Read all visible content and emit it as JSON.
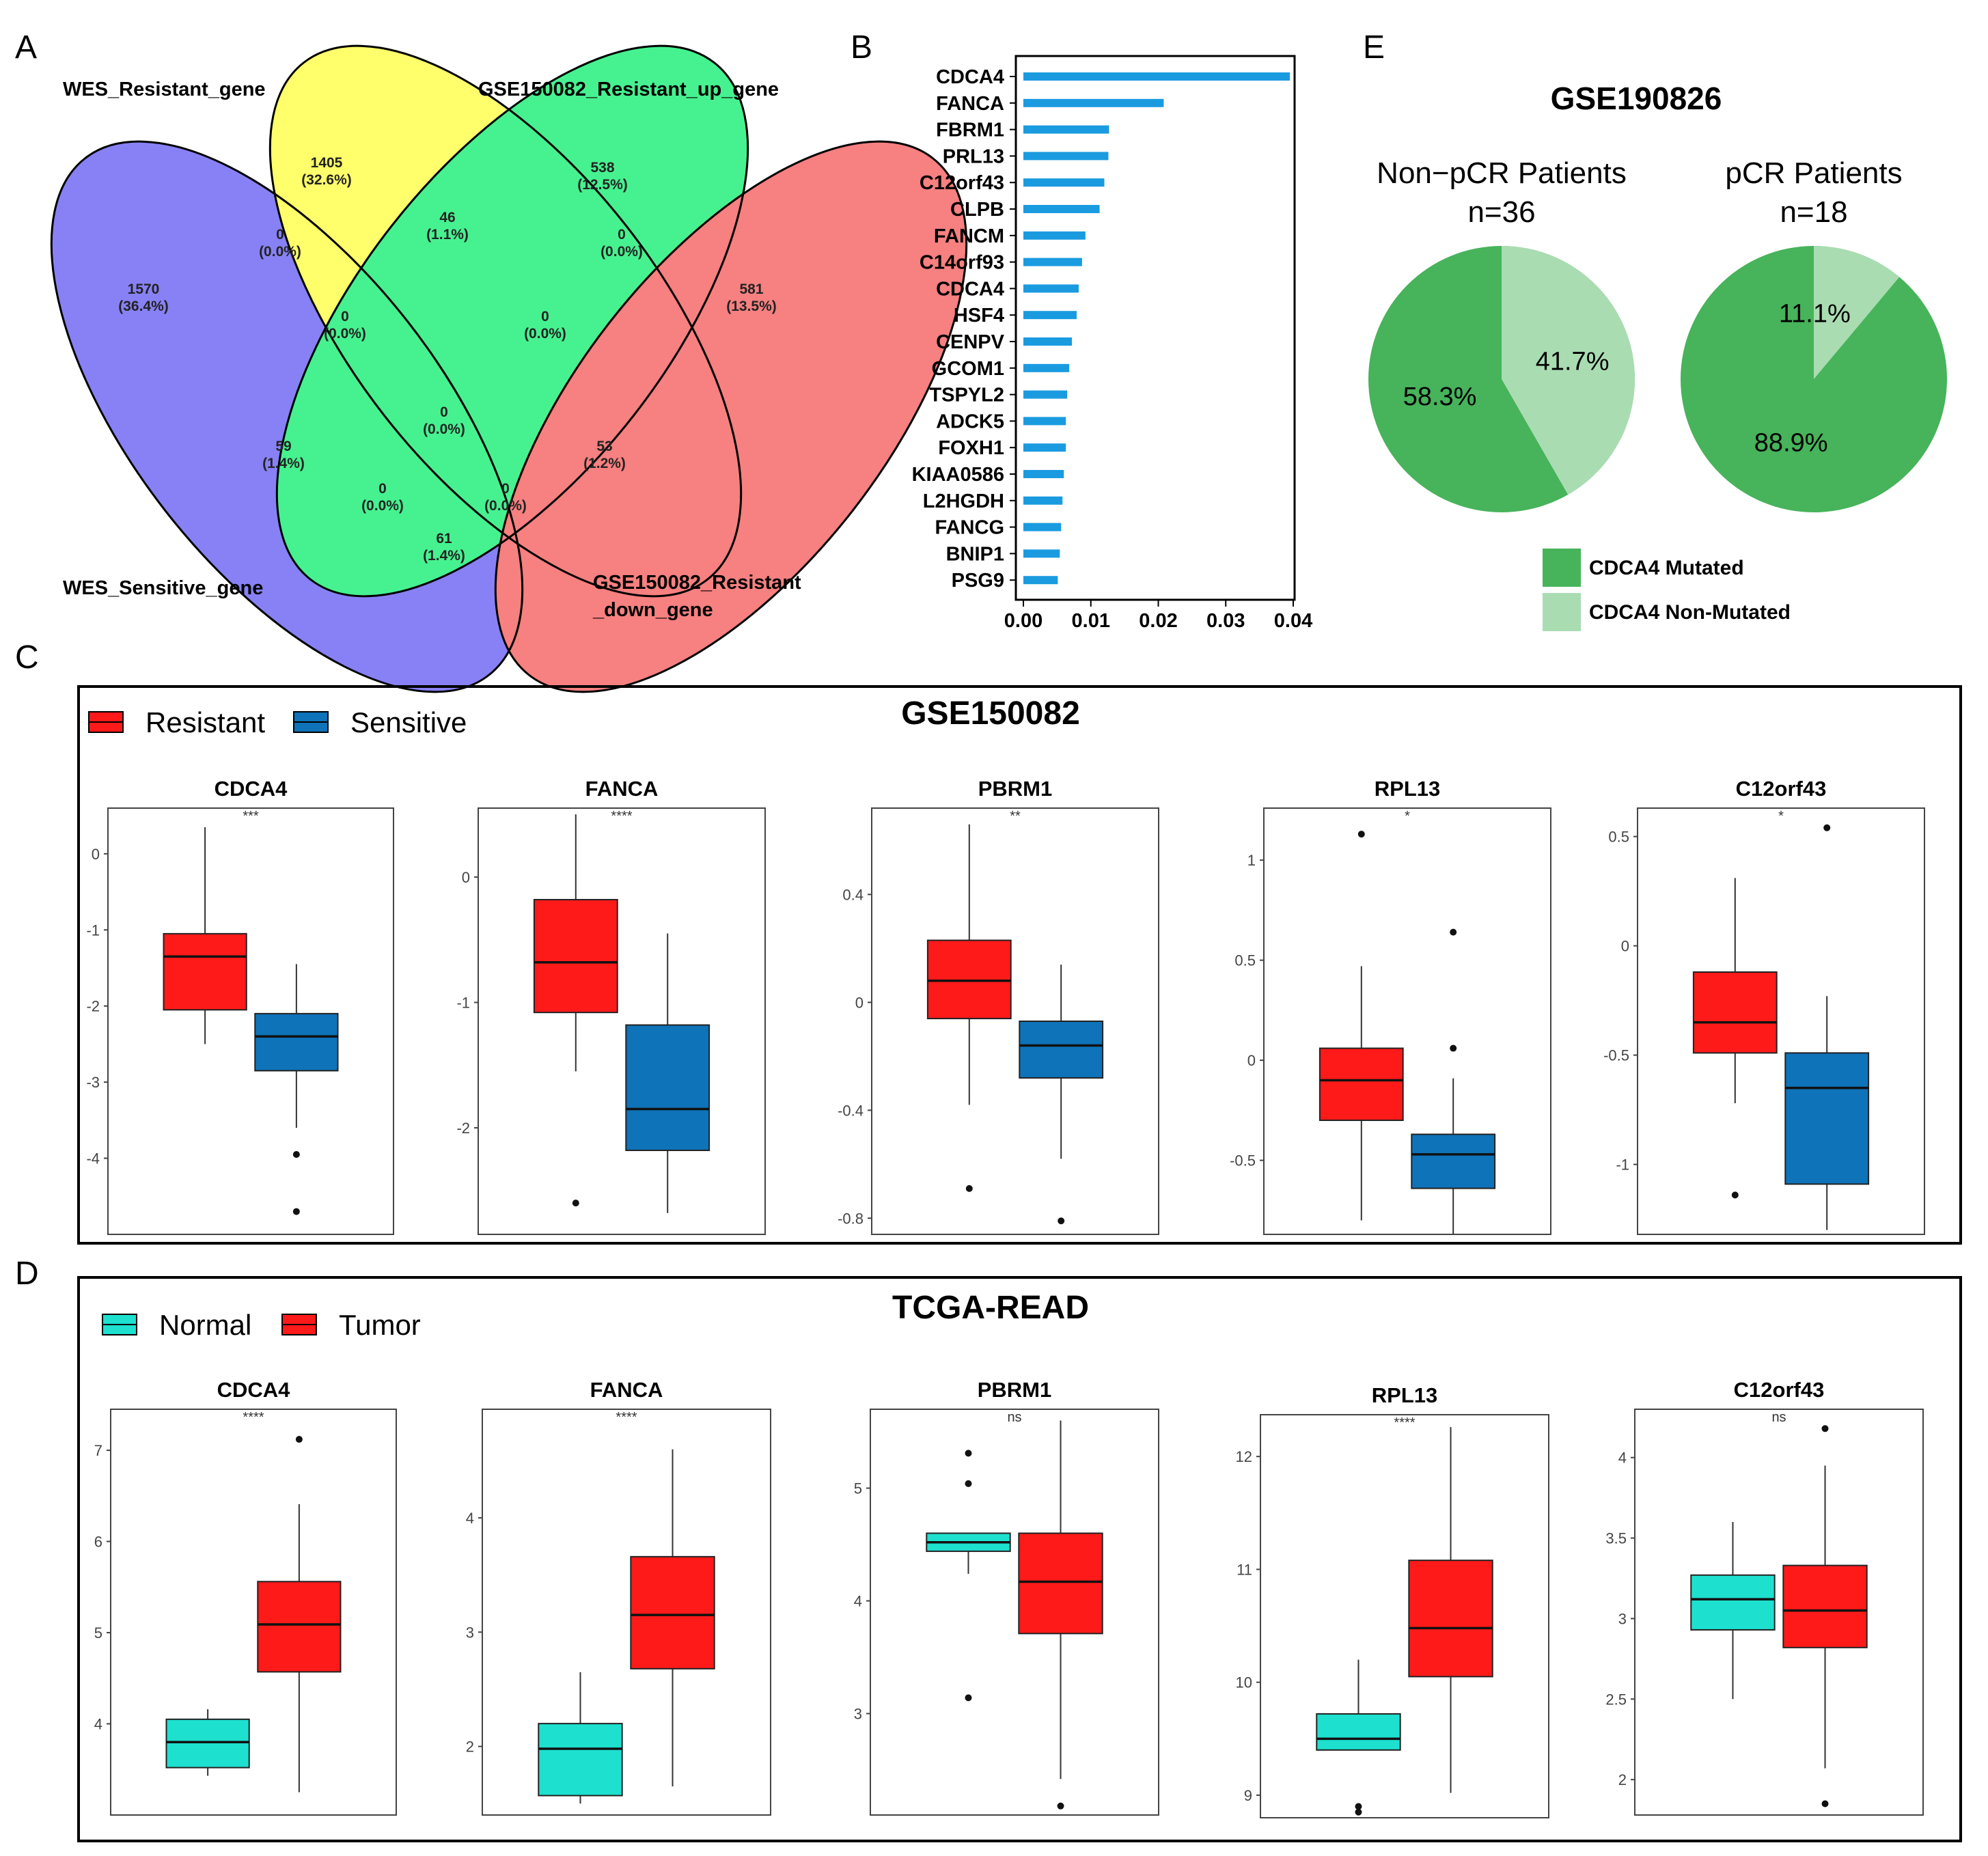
{
  "panel_letters": [
    "A",
    "B",
    "E",
    "C",
    "D"
  ],
  "chart_data": [
    {
      "type": "venn",
      "panel": "A",
      "sets": [
        "WES_Resistant_gene",
        "GSE150082_Resistant_up_gene",
        "WES_Sensitive_gene",
        "GSE150082_Resistant",
        "_down_gene"
      ],
      "regions": [
        {
          "count": "1405",
          "pct": "(32.6%)"
        },
        {
          "count": "538",
          "pct": "(12.5%)"
        },
        {
          "count": "1570",
          "pct": "(36.4%)"
        },
        {
          "count": "581",
          "pct": "(13.5%)"
        },
        {
          "count": "46",
          "pct": "(1.1%)"
        },
        {
          "count": "0",
          "pct": "(0.0%)"
        },
        {
          "count": "0",
          "pct": "(0.0%)"
        },
        {
          "count": "0",
          "pct": "(0.0%)"
        },
        {
          "count": "0",
          "pct": "(0.0%)"
        },
        {
          "count": "0",
          "pct": "(0.0%)"
        },
        {
          "count": "59",
          "pct": "(1.4%)"
        },
        {
          "count": "53",
          "pct": "(1.2%)"
        },
        {
          "count": "0",
          "pct": "(0.0%)"
        },
        {
          "count": "0",
          "pct": "(0.0%)"
        },
        {
          "count": "61",
          "pct": "(1.4%)"
        }
      ],
      "colors": [
        "#ffff33",
        "#00ee66",
        "#5b52f2",
        "#f55050"
      ]
    },
    {
      "type": "bar",
      "panel": "B",
      "orientation": "horizontal",
      "categories": [
        "CDCA4",
        "FANCA",
        "FBRM1",
        "PRL13",
        "C12orf43",
        "CLPB",
        "FANCM",
        "C14orf93",
        "CDCA4",
        "HSF4",
        "CENPV",
        "GCOM1",
        "TSPYL2",
        "ADCK5",
        "FOXH1",
        "KIAA0586",
        "L2HGDH",
        "FANCG",
        "BNIP1",
        "PSG9"
      ],
      "values": [
        0.0395,
        0.0208,
        0.0127,
        0.0126,
        0.012,
        0.0113,
        0.0092,
        0.0087,
        0.0082,
        0.0079,
        0.0072,
        0.0068,
        0.0065,
        0.0063,
        0.0063,
        0.006,
        0.0058,
        0.0056,
        0.0054,
        0.0051
      ],
      "xticks": [
        "0.00",
        "0.01",
        "0.02",
        "0.03",
        "0.04"
      ],
      "xlim": [
        0,
        0.04
      ],
      "color": "#1a9be0"
    },
    {
      "type": "pie",
      "panel": "E",
      "title": "GSE190826",
      "pies": [
        {
          "title": "Non−pCR Patients",
          "n": "n=36",
          "values": [
            58.3,
            41.7
          ],
          "labels": [
            "58.3%",
            "41.7%"
          ]
        },
        {
          "title": "pCR Patients",
          "n": "n=18",
          "values": [
            88.9,
            11.1
          ],
          "labels": [
            "88.9%",
            "11.1%"
          ]
        }
      ],
      "legend": [
        "CDCA4 Mutated",
        "CDCA4 Non-Mutated"
      ],
      "colors": [
        "#47b35a",
        "#aadcb2"
      ]
    },
    {
      "type": "boxplot",
      "panel": "C",
      "title": "GSE150082",
      "legend": [
        "Resistant",
        "Sensitive"
      ],
      "colors": [
        "#ff1a1a",
        "#0e73b8"
      ],
      "subplots": [
        {
          "gene": "CDCA4",
          "sig": "***",
          "ylim": [
            -5.0,
            0.6
          ],
          "ticks": [
            0,
            -1,
            -2,
            -3,
            -4
          ],
          "boxes": [
            {
              "q1": -2.05,
              "median": -1.35,
              "q3": -1.05,
              "min": -2.5,
              "max": 0.35,
              "outliers": []
            },
            {
              "q1": -2.85,
              "median": -2.4,
              "q3": -2.1,
              "min": -3.6,
              "max": -1.45,
              "outliers": [
                -3.95,
                -4.7
              ]
            }
          ]
        },
        {
          "gene": "FANCA",
          "sig": "****",
          "ylim": [
            -2.85,
            0.55
          ],
          "ticks": [
            0,
            -1,
            -2
          ],
          "boxes": [
            {
              "q1": -1.08,
              "median": -0.68,
              "q3": -0.18,
              "min": -1.55,
              "max": 0.5,
              "outliers": [
                -2.6
              ]
            },
            {
              "q1": -2.18,
              "median": -1.85,
              "q3": -1.18,
              "min": -2.68,
              "max": -0.45,
              "outliers": []
            }
          ]
        },
        {
          "gene": "PBRM1",
          "sig": "**",
          "ylim": [
            -0.86,
            0.72
          ],
          "ticks": [
            0.4,
            0.0,
            -0.4,
            -0.8
          ],
          "boxes": [
            {
              "q1": -0.06,
              "median": 0.08,
              "q3": 0.23,
              "min": -0.38,
              "max": 0.66,
              "outliers": [
                -0.69
              ]
            },
            {
              "q1": -0.28,
              "median": -0.16,
              "q3": -0.07,
              "min": -0.58,
              "max": 0.14,
              "outliers": [
                -0.81
              ]
            }
          ]
        },
        {
          "gene": "RPL13",
          "sig": "*",
          "ylim": [
            -0.87,
            1.26
          ],
          "ticks": [
            1.0,
            0.5,
            0.0,
            -0.5
          ],
          "boxes": [
            {
              "q1": -0.3,
              "median": -0.1,
              "q3": 0.06,
              "min": -0.8,
              "max": 0.47,
              "outliers": [
                1.13
              ]
            },
            {
              "q1": -0.64,
              "median": -0.47,
              "q3": -0.37,
              "min": -0.87,
              "max": -0.09,
              "outliers": [
                0.64,
                0.06
              ]
            }
          ]
        },
        {
          "gene": "C12orf43",
          "sig": "*",
          "ylim": [
            -1.32,
            0.63
          ],
          "ticks": [
            0.5,
            0.0,
            -0.5,
            -1.0
          ],
          "boxes": [
            {
              "q1": -0.49,
              "median": -0.35,
              "q3": -0.12,
              "min": -0.72,
              "max": 0.31,
              "outliers": [
                -1.14
              ]
            },
            {
              "q1": -1.09,
              "median": -0.65,
              "q3": -0.49,
              "min": -1.3,
              "max": -0.23,
              "outliers": [
                0.54
              ]
            }
          ]
        }
      ]
    },
    {
      "type": "boxplot",
      "panel": "D",
      "title": "TCGA-READ",
      "legend": [
        "Normal",
        "Tumor"
      ],
      "colors": [
        "#1de0cf",
        "#ff1a1a"
      ],
      "subplots": [
        {
          "gene": "CDCA4",
          "sig": "****",
          "ylim": [
            3.0,
            7.45
          ],
          "ticks": [
            7,
            6,
            5,
            4
          ],
          "boxes": [
            {
              "q1": 3.52,
              "median": 3.8,
              "q3": 4.05,
              "min": 3.43,
              "max": 4.16,
              "outliers": []
            },
            {
              "q1": 4.57,
              "median": 5.09,
              "q3": 5.56,
              "min": 3.25,
              "max": 6.41,
              "outliers": [
                7.12
              ]
            }
          ]
        },
        {
          "gene": "FANCA",
          "sig": "****",
          "ylim": [
            1.4,
            4.95
          ],
          "ticks": [
            4,
            3,
            2
          ],
          "boxes": [
            {
              "q1": 1.57,
              "median": 1.98,
              "q3": 2.2,
              "min": 1.5,
              "max": 2.65,
              "outliers": []
            },
            {
              "q1": 2.68,
              "median": 3.15,
              "q3": 3.66,
              "min": 1.65,
              "max": 4.6,
              "outliers": []
            }
          ]
        },
        {
          "gene": "PBRM1",
          "sig": "ns",
          "ylim": [
            2.1,
            5.7
          ],
          "ticks": [
            5,
            4,
            3
          ],
          "boxes": [
            {
              "q1": 4.44,
              "median": 4.52,
              "q3": 4.6,
              "min": 4.24,
              "max": 4.6,
              "outliers": [
                5.31,
                5.04,
                3.14
              ]
            },
            {
              "q1": 3.71,
              "median": 4.17,
              "q3": 4.6,
              "min": 2.42,
              "max": 5.6,
              "outliers": [
                2.18
              ]
            }
          ]
        },
        {
          "gene": "RPL13",
          "sig": "****",
          "ylim": [
            8.8,
            12.37
          ],
          "ticks": [
            12,
            11,
            10,
            9
          ],
          "boxes": [
            {
              "q1": 9.4,
              "median": 9.5,
              "q3": 9.72,
              "min": 9.4,
              "max": 10.2,
              "outliers": [
                8.9,
                8.85
              ]
            },
            {
              "q1": 10.05,
              "median": 10.48,
              "q3": 11.08,
              "min": 9.02,
              "max": 12.26,
              "outliers": []
            }
          ]
        },
        {
          "gene": "C12orf43",
          "sig": "ns",
          "ylim": [
            1.78,
            4.3
          ],
          "ticks": [
            4.0,
            3.5,
            3.0,
            2.5,
            2.0
          ],
          "boxes": [
            {
              "q1": 2.93,
              "median": 3.12,
              "q3": 3.27,
              "min": 2.5,
              "max": 3.6,
              "outliers": []
            },
            {
              "q1": 2.82,
              "median": 3.05,
              "q3": 3.33,
              "min": 2.07,
              "max": 3.95,
              "outliers": [
                4.18,
                1.85
              ]
            }
          ]
        }
      ]
    }
  ]
}
